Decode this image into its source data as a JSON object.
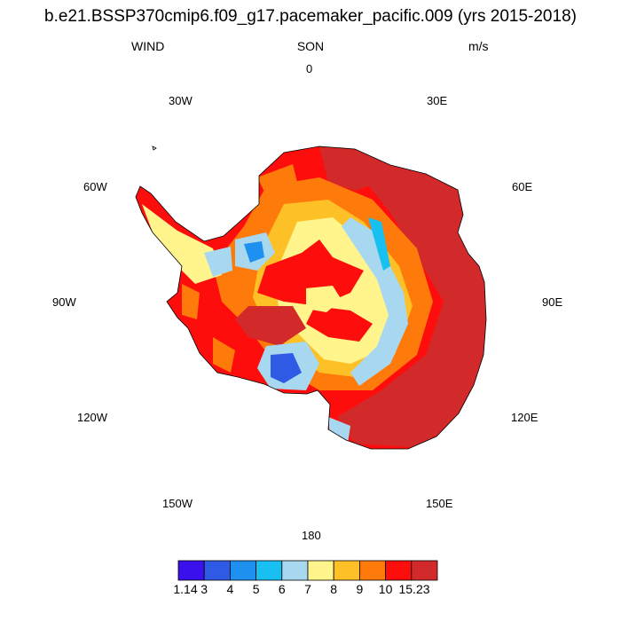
{
  "title": "b.e21.BSSP370cmip6.f09_g17.pacemaker_pacific.009 (yrs 2015-2018)",
  "subtitle": {
    "left": "WIND",
    "center": "SON",
    "right": "m/s"
  },
  "longitude_labels": {
    "lon_0": "0",
    "lon_30e": "30E",
    "lon_60e": "60E",
    "lon_90e": "90E",
    "lon_120e": "120E",
    "lon_150e": "150E",
    "lon_180": "180",
    "lon_150w": "150W",
    "lon_120w": "120W",
    "lon_90w": "90W",
    "lon_60w": "60W",
    "lon_30w": "30W"
  },
  "colorbar": {
    "colors": [
      "#3a10ec",
      "#2f5ae6",
      "#1e90f0",
      "#18c0f2",
      "#a8d8f0",
      "#fff58c",
      "#fdc127",
      "#fd7a0b",
      "#fe0d0d",
      "#d22a2a"
    ],
    "labels": [
      "1.14",
      "3",
      "4",
      "5",
      "6",
      "7",
      "8",
      "9",
      "10",
      "15.23"
    ]
  }
}
